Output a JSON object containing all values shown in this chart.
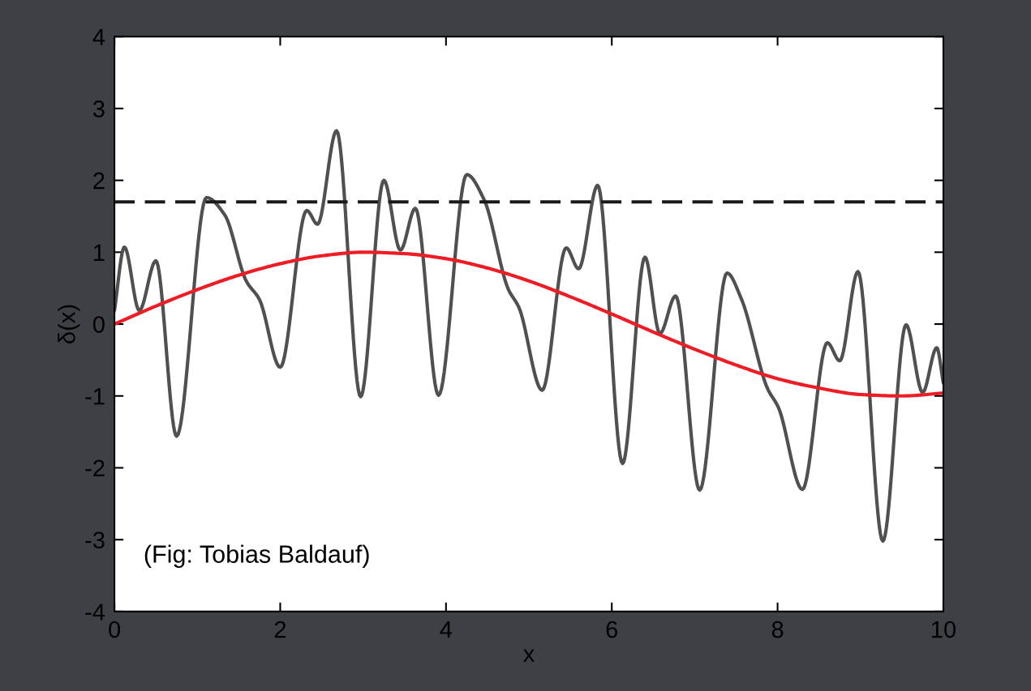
{
  "chart_data": {
    "type": "line",
    "xlabel": "x",
    "ylabel": "δ(x)",
    "xlim": [
      0,
      10
    ],
    "xticks": [
      0,
      2,
      4,
      6,
      8,
      10
    ],
    "ylim": [
      -4,
      4
    ],
    "yticks": [
      -4,
      -3,
      -2,
      -1,
      0,
      1,
      2,
      3,
      4
    ],
    "grid": false,
    "legend": false,
    "marker": "none",
    "series": [
      {
        "color": "#505050",
        "x": [
          0,
          0.12,
          0.3,
          0.5,
          0.75,
          1.11,
          1.33,
          1.59,
          1.75,
          2.0,
          2.32,
          2.45,
          2.68,
          2.97,
          3.25,
          3.45,
          3.63,
          3.91,
          4.25,
          4.46,
          4.75,
          4.88,
          5.16,
          5.45,
          5.6,
          5.83,
          6.13,
          6.4,
          6.58,
          6.77,
          7.06,
          7.39,
          7.56,
          7.88,
          8.01,
          8.3,
          8.6,
          8.75,
          8.97,
          9.27,
          9.55,
          9.75,
          9.92,
          10
        ],
        "values": [
          0.19,
          1.07,
          0.19,
          0.88,
          -1.56,
          1.76,
          1.52,
          0.6,
          0.34,
          -0.6,
          1.58,
          1.39,
          2.69,
          -1.01,
          2.0,
          1.03,
          1.61,
          -0.99,
          2.08,
          1.73,
          0.49,
          0.23,
          -0.92,
          1.06,
          0.77,
          1.93,
          -1.94,
          0.93,
          -0.13,
          0.39,
          -2.31,
          0.71,
          0.36,
          -0.9,
          -1.16,
          -2.3,
          -0.26,
          -0.51,
          0.73,
          -3.02,
          -0.01,
          -0.95,
          -0.33,
          -0.82
        ]
      },
      {
        "color": "#ee1c24",
        "x": [
          0,
          0.5,
          1,
          1.5,
          2,
          2.5,
          3,
          3.5,
          4,
          4.5,
          5,
          5.5,
          6,
          6.5,
          7,
          7.5,
          8,
          8.5,
          9,
          9.5,
          10
        ],
        "values": [
          0,
          0.25,
          0.48,
          0.68,
          0.84,
          0.95,
          1.0,
          0.98,
          0.91,
          0.78,
          0.6,
          0.38,
          0.14,
          -0.11,
          -0.35,
          -0.57,
          -0.76,
          -0.89,
          -0.98,
          -1.0,
          -0.96
        ]
      }
    ],
    "ref_lines": [
      {
        "axis": "y",
        "value": 1.7,
        "color": "#1a1a1a",
        "line_style": "dashed"
      }
    ],
    "annotations": [
      "(Fig: Tobias Baldauf)"
    ]
  }
}
